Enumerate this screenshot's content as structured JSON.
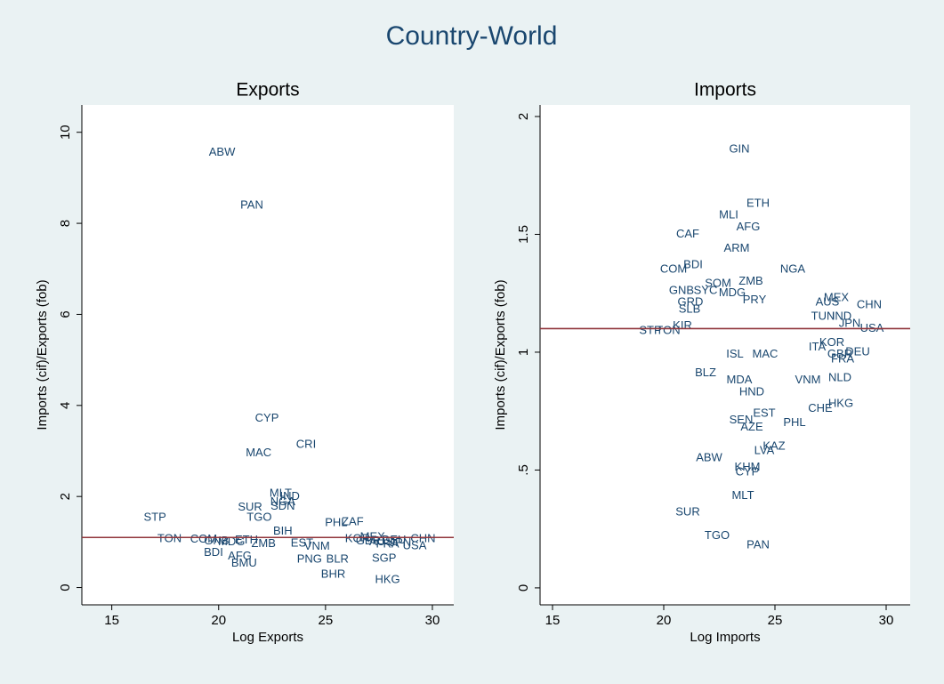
{
  "title": "Country-World",
  "chart_data": [
    {
      "type": "scatter",
      "title": "Exports",
      "x_label": "Log Exports",
      "y_label": "Imports (cif)/Exports (fob)",
      "xlim": [
        13.6,
        31
      ],
      "ylim": [
        -0.38,
        10.6
      ],
      "xticks": [
        15,
        20,
        25,
        30
      ],
      "yticks": [
        0,
        2,
        4,
        6,
        8,
        10
      ],
      "grid": false,
      "reference_line": 1.1,
      "reference_color": "#90353b",
      "color": "#1a476f",
      "labels": [
        "ABW",
        "PAN",
        "CYP",
        "CRI",
        "MAC",
        "MLT",
        "IND",
        "NGA",
        "SDN",
        "SUR",
        "TGO",
        "STP",
        "TON",
        "BIH",
        "ZAF",
        "PHL",
        "CHN",
        "USA",
        "SGP",
        "HKG",
        "BHR",
        "BLR",
        "PNG",
        "BMU",
        "AFG",
        "BDI",
        "COM",
        "GNB",
        "MDG",
        "ETH",
        "ZMB",
        "MEX",
        "AUS",
        "JPN",
        "DEU",
        "FRA",
        "GBR",
        "KOR",
        "VNM",
        "EST"
      ],
      "x": [
        20.16,
        21.55,
        22.26,
        24.09,
        21.87,
        22.9,
        23.33,
        23.0,
        23.0,
        21.47,
        21.9,
        17.02,
        17.7,
        23.0,
        26.27,
        25.5,
        29.56,
        29.17,
        27.74,
        27.9,
        25.36,
        25.56,
        24.25,
        21.19,
        20.99,
        19.76,
        19.3,
        19.9,
        20.6,
        21.3,
        22.1,
        27.2,
        27.6,
        28.5,
        28.2,
        27.9,
        27.0,
        26.5,
        24.6,
        23.9
      ],
      "values": [
        9.55,
        8.39,
        3.71,
        3.14,
        2.95,
        2.06,
        1.99,
        1.88,
        1.78,
        1.76,
        1.53,
        1.53,
        1.06,
        1.23,
        1.44,
        1.42,
        1.06,
        0.91,
        0.63,
        0.17,
        0.28,
        0.62,
        0.62,
        0.53,
        0.68,
        0.76,
        1.05,
        1.02,
        1.0,
        1.04,
        0.96,
        1.1,
        1.0,
        0.98,
        1.04,
        0.95,
        1.02,
        1.06,
        0.9,
        0.97
      ]
    },
    {
      "type": "scatter",
      "title": "Imports",
      "x_label": "Log Imports",
      "y_label": "Imports (cif)/Exports (fob)",
      "xlim": [
        14.44,
        31.08
      ],
      "ylim": [
        -0.072,
        2.049
      ],
      "xticks": [
        15,
        20,
        25,
        30
      ],
      "yticks": [
        0,
        {
          "value": 0.5,
          "label": ".5"
        },
        1,
        1.5,
        2
      ],
      "grid": false,
      "reference_line": 1.1,
      "reference_color": "#90353b",
      "color": "#1a476f",
      "labels": [
        "GIN",
        "ETH",
        "MLI",
        "AFG",
        "CAF",
        "ARM",
        "NGA",
        "BDI",
        "COM",
        "ZMB",
        "SOM",
        "GNB",
        "SYC",
        "MDG",
        "GRD",
        "PRY",
        "MEX",
        "AUS",
        "CHN",
        "SLB",
        "TUN",
        "IND",
        "JPN",
        "USA",
        "STP",
        "TON",
        "KIR",
        "DEU",
        "GBR",
        "FRA",
        "ISL",
        "NLD",
        "VNM",
        "BLZ",
        "MDA",
        "HND",
        "HKG",
        "CHE",
        "EST",
        "SEN",
        "PHL",
        "AZE",
        "KAZ",
        "LVA",
        "ABW",
        "KHM",
        "CYP",
        "MLT",
        "SUR",
        "TGO",
        "PAN",
        "MAC",
        "KOR",
        "ITA"
      ],
      "x": [
        23.4,
        24.24,
        22.92,
        23.8,
        21.08,
        23.28,
        25.8,
        21.32,
        20.44,
        23.92,
        22.44,
        20.8,
        21.88,
        23.08,
        21.2,
        24.08,
        27.76,
        27.36,
        29.24,
        21.16,
        27.16,
        28.0,
        28.36,
        29.36,
        19.4,
        20.2,
        20.84,
        28.72,
        27.92,
        28.04,
        23.2,
        27.92,
        26.48,
        21.88,
        23.4,
        23.96,
        27.96,
        27.04,
        24.52,
        23.48,
        25.88,
        23.96,
        24.96,
        24.52,
        22.04,
        23.76,
        23.76,
        23.56,
        21.08,
        22.4,
        24.24,
        24.56,
        27.56,
        26.9
      ],
      "values": [
        1.86,
        1.63,
        1.58,
        1.53,
        1.5,
        1.44,
        1.35,
        1.37,
        1.35,
        1.3,
        1.29,
        1.26,
        1.26,
        1.25,
        1.21,
        1.22,
        1.23,
        1.21,
        1.2,
        1.18,
        1.15,
        1.15,
        1.12,
        1.1,
        1.09,
        1.09,
        1.11,
        1.0,
        0.99,
        0.97,
        0.99,
        0.89,
        0.88,
        0.91,
        0.88,
        0.83,
        0.78,
        0.76,
        0.74,
        0.71,
        0.7,
        0.68,
        0.6,
        0.58,
        0.55,
        0.51,
        0.49,
        0.39,
        0.32,
        0.22,
        0.18,
        0.99,
        1.04,
        1.02
      ]
    }
  ]
}
